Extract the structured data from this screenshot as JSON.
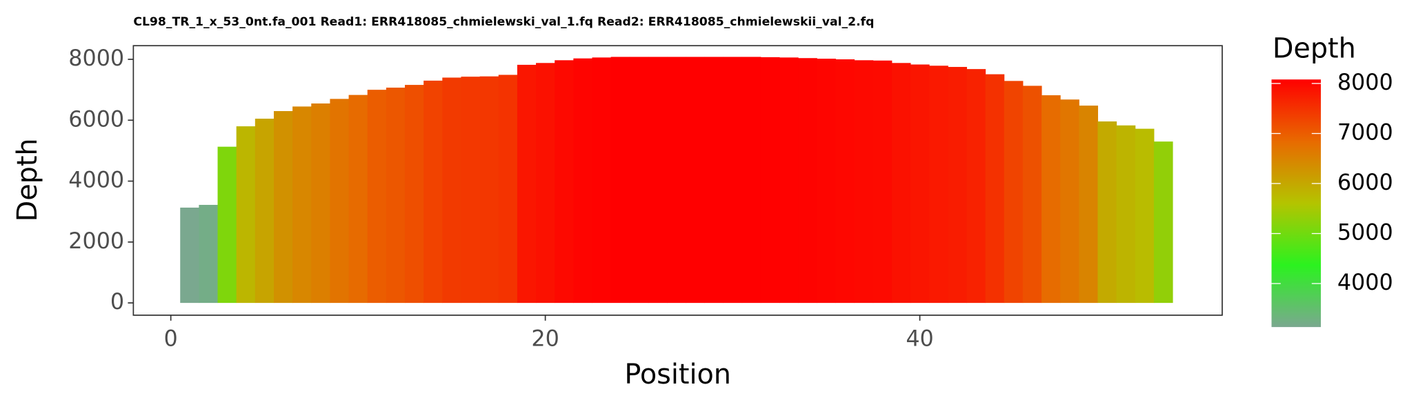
{
  "chart_data": {
    "type": "bar",
    "title": "CL98_TR_1_x_53_0nt.fa_001 Read1: ERR418085_chmielewski_val_1.fq Read2: ERR418085_chmielewskii_val_2.fq",
    "x_label": "Position",
    "y_label": "Depth",
    "legend_title": "Depth",
    "x": [
      1,
      2,
      3,
      4,
      5,
      6,
      7,
      8,
      9,
      10,
      11,
      12,
      13,
      14,
      15,
      16,
      17,
      18,
      19,
      20,
      21,
      22,
      23,
      24,
      25,
      26,
      27,
      28,
      29,
      30,
      31,
      32,
      33,
      34,
      35,
      36,
      37,
      38,
      39,
      40,
      41,
      42,
      43,
      44,
      45,
      46,
      47,
      48,
      49,
      50,
      51,
      52,
      53
    ],
    "values": [
      3130,
      3220,
      5130,
      5800,
      6050,
      6300,
      6450,
      6550,
      6700,
      6830,
      7000,
      7070,
      7160,
      7300,
      7400,
      7430,
      7440,
      7490,
      7820,
      7880,
      7970,
      8030,
      8060,
      8080,
      8080,
      8080,
      8080,
      8080,
      8080,
      8080,
      8080,
      8070,
      8060,
      8040,
      8020,
      8000,
      7970,
      7960,
      7880,
      7830,
      7790,
      7750,
      7680,
      7510,
      7290,
      7130,
      6820,
      6680,
      6480,
      5960,
      5830,
      5720,
      5300
    ],
    "color_scale": [
      "#7aa88f",
      "#2bf21f",
      "#b4c400",
      "#e86a00",
      "#ff0000"
    ],
    "xlim": [
      -2,
      56.15
    ],
    "xticks": [
      0,
      20,
      40
    ],
    "ylim": [
      -403,
      8448
    ],
    "yticks": [
      0,
      2000,
      4000,
      6000,
      8000
    ],
    "legend_ticks": [
      4000,
      5000,
      6000,
      7000,
      8000
    ]
  }
}
